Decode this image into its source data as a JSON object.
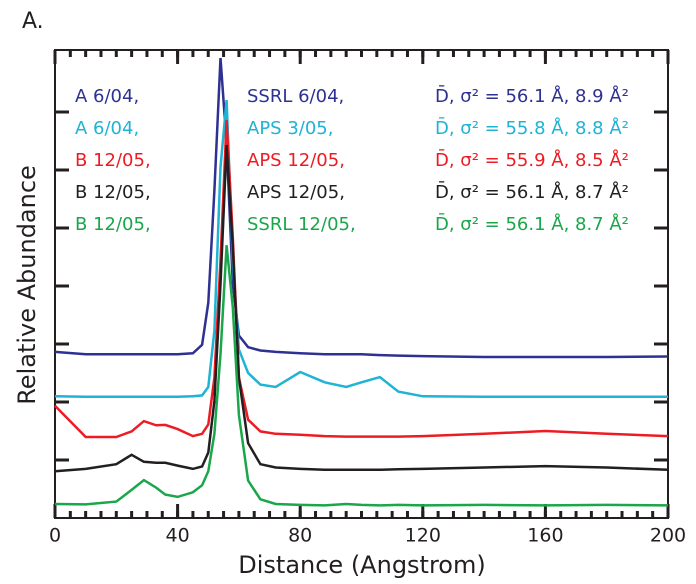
{
  "chart_data": {
    "type": "line",
    "panel_label": "A.",
    "xlabel": "Distance (Angstrom)",
    "ylabel": "Relative Abundance",
    "xlim": [
      0,
      200
    ],
    "xticks": [
      0,
      40,
      80,
      120,
      160,
      200
    ],
    "ylim": [
      0,
      10
    ],
    "x": [
      0,
      10,
      20,
      25,
      29,
      33,
      36,
      40,
      45,
      48,
      50,
      52,
      54,
      56,
      58,
      60,
      63,
      67,
      72,
      80,
      88,
      95,
      100,
      106,
      112,
      120,
      140,
      160,
      180,
      200
    ],
    "series": [
      {
        "name": "A 6/04,",
        "source": "SSRL 6/04,",
        "stats": "D̄, σ² = 56.1 Å, 8.9 Å²",
        "color": "#2e3192",
        "values": [
          3.55,
          3.5,
          3.5,
          3.5,
          3.5,
          3.5,
          3.5,
          3.5,
          3.52,
          3.7,
          4.6,
          7.0,
          9.83,
          8.0,
          5.0,
          3.9,
          3.65,
          3.58,
          3.55,
          3.52,
          3.5,
          3.5,
          3.5,
          3.48,
          3.47,
          3.46,
          3.44,
          3.44,
          3.44,
          3.45
        ]
      },
      {
        "name": "A 6/04,",
        "source": "APS 3/05,",
        "stats": "D̄, σ² = 55.8 Å, 8.8 Å²",
        "color": "#1fb3d4",
        "values": [
          2.6,
          2.59,
          2.59,
          2.59,
          2.59,
          2.59,
          2.59,
          2.59,
          2.6,
          2.62,
          2.8,
          4.0,
          7.5,
          8.93,
          5.5,
          3.6,
          3.1,
          2.85,
          2.8,
          3.12,
          2.9,
          2.8,
          2.9,
          3.01,
          2.7,
          2.6,
          2.59,
          2.59,
          2.59,
          2.59
        ]
      },
      {
        "name": "B 12/05,",
        "source": "APS 12/05,",
        "stats": "D̄, σ² = 55.9 Å, 8.5 Å²",
        "color": "#ed1c24",
        "values": [
          2.4,
          1.73,
          1.73,
          1.85,
          2.07,
          1.98,
          1.99,
          1.9,
          1.75,
          1.8,
          2.0,
          3.0,
          5.5,
          8.5,
          6.0,
          3.0,
          2.1,
          1.85,
          1.8,
          1.78,
          1.75,
          1.74,
          1.74,
          1.74,
          1.74,
          1.75,
          1.8,
          1.86,
          1.8,
          1.75
        ]
      },
      {
        "name": "B 12/05,",
        "source": "APS 12/05,",
        "stats": "D̄, σ² = 56.1 Å, 8.7 Å²",
        "color": "#231f20",
        "values": [
          1.0,
          1.05,
          1.15,
          1.35,
          1.2,
          1.18,
          1.18,
          1.12,
          1.05,
          1.1,
          1.4,
          2.5,
          5.0,
          7.97,
          5.8,
          3.0,
          1.6,
          1.15,
          1.08,
          1.05,
          1.03,
          1.03,
          1.03,
          1.03,
          1.04,
          1.05,
          1.08,
          1.11,
          1.08,
          1.03
        ]
      },
      {
        "name": "B 12/05,",
        "source": "SSRL 12/05,",
        "stats": "D̄, σ² = 56.1 Å, 8.7 Å²",
        "color": "#1aa64a",
        "values": [
          0.3,
          0.29,
          0.35,
          0.6,
          0.81,
          0.65,
          0.5,
          0.45,
          0.55,
          0.7,
          1.0,
          1.8,
          3.5,
          5.83,
          4.5,
          2.2,
          0.8,
          0.4,
          0.3,
          0.28,
          0.27,
          0.3,
          0.28,
          0.27,
          0.28,
          0.27,
          0.28,
          0.27,
          0.28,
          0.27
        ]
      }
    ]
  }
}
